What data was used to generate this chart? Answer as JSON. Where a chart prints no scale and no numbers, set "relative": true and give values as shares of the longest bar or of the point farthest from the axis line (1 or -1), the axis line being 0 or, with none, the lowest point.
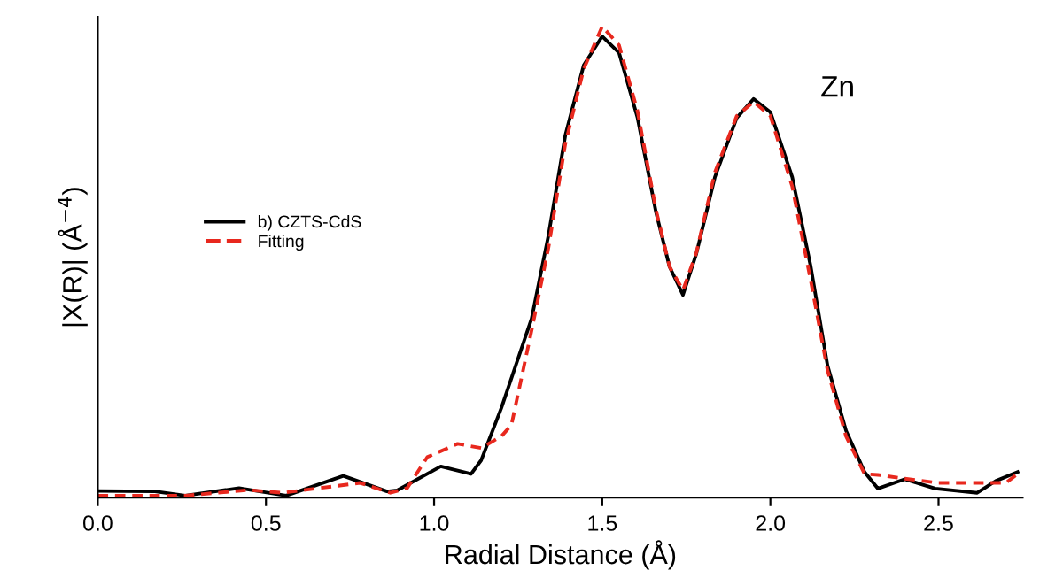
{
  "chart_data": {
    "type": "line",
    "relative": true,
    "xlabel": "Radial Distance (Å)",
    "ylabel": "|X(R)| (Å$^{−4}$)",
    "annotations": [
      "Zn"
    ],
    "xlim": [
      0,
      2.75
    ],
    "xticks": [
      {
        "value": 0,
        "label": "0.0"
      },
      0.5,
      {
        "value": 1,
        "label": "1.0"
      },
      1.5,
      {
        "value": 2,
        "label": "2.0"
      },
      2.5
    ],
    "grid": false,
    "legend": "left",
    "marker": "none",
    "series": [
      {
        "name": "b) CZTS-CdS",
        "color": "#000000",
        "line_style": "solid",
        "x": [
          0,
          0.17,
          0.26,
          0.42,
          0.56,
          0.73,
          0.86,
          0.89,
          1.02,
          1.11,
          1.14,
          1.2,
          1.29,
          1.34,
          1.39,
          1.445,
          1.5,
          1.55,
          1.605,
          1.66,
          1.7,
          1.74,
          1.78,
          1.835,
          1.9,
          1.95,
          2.0,
          2.065,
          2.12,
          2.17,
          2.225,
          2.28,
          2.32,
          2.4,
          2.49,
          2.615,
          2.67,
          2.735
        ],
        "values": [
          0.014,
          0.013,
          0.004,
          0.02,
          0.004,
          0.046,
          0.013,
          0.015,
          0.066,
          0.05,
          0.079,
          0.19,
          0.38,
          0.556,
          0.768,
          0.918,
          0.979,
          0.944,
          0.806,
          0.605,
          0.49,
          0.43,
          0.518,
          0.68,
          0.806,
          0.846,
          0.818,
          0.68,
          0.49,
          0.28,
          0.142,
          0.054,
          0.019,
          0.039,
          0.019,
          0.01,
          0.035,
          0.054
        ]
      },
      {
        "name": "Fitting",
        "color": "#e8281e",
        "line_style": "dashed",
        "x": [
          0,
          0.26,
          0.45,
          0.55,
          0.78,
          0.87,
          0.92,
          0.98,
          1.07,
          1.14,
          1.2,
          1.23,
          1.29,
          1.34,
          1.39,
          1.445,
          1.5,
          1.55,
          1.605,
          1.66,
          1.7,
          1.74,
          1.78,
          1.835,
          1.9,
          1.95,
          2.0,
          2.065,
          2.12,
          2.17,
          2.225,
          2.28,
          2.32,
          2.4,
          2.5,
          2.7,
          2.735
        ],
        "values": [
          0.004,
          0.004,
          0.016,
          0.01,
          0.031,
          0.01,
          0.02,
          0.086,
          0.114,
          0.105,
          0.13,
          0.154,
          0.355,
          0.53,
          0.75,
          0.91,
          1.0,
          0.96,
          0.82,
          0.61,
          0.49,
          0.44,
          0.52,
          0.69,
          0.81,
          0.84,
          0.81,
          0.66,
          0.46,
          0.27,
          0.13,
          0.05,
          0.048,
          0.04,
          0.031,
          0.031,
          0.05
        ]
      }
    ]
  }
}
